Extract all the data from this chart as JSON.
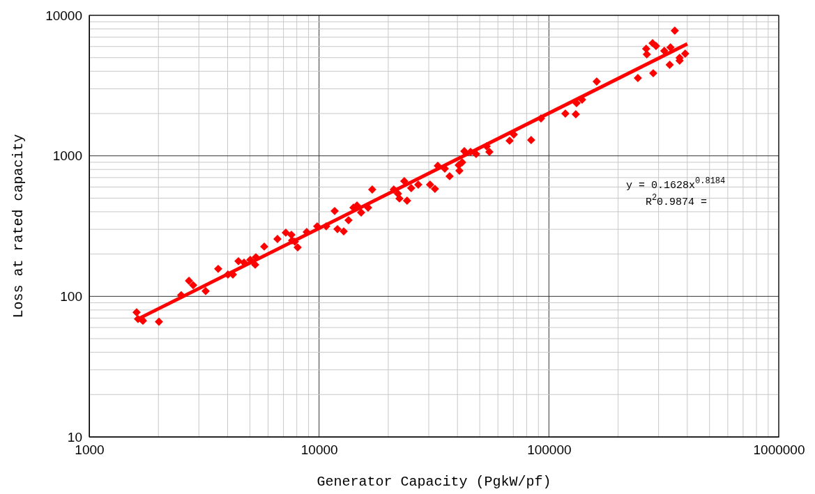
{
  "chart_data": {
    "type": "scatter",
    "xlabel": "Generator Capacity (PgkW/pf)",
    "ylabel": "Loss at rated capacity",
    "log": "xy",
    "grid": true,
    "xlim": [
      1000,
      1000000
    ],
    "xticks": [
      1000,
      10000,
      100000,
      1000000
    ],
    "ylim": [
      10,
      10000
    ],
    "yticks": [
      10,
      100,
      1000,
      10000
    ],
    "annotations": [
      "y = 0.1628x$^{0.8184}$",
      "R$^{2}$0.9874 ="
    ],
    "series": [
      {
        "marker": "diamond",
        "color": "#ff0000",
        "x": [
          1607,
          1630,
          1700,
          1712,
          2010,
          2512,
          2716,
          2833,
          3210,
          3640,
          4013,
          4217,
          4458,
          4714,
          5019,
          5272,
          5309,
          5772,
          6590,
          7164,
          7579,
          7632,
          7846,
          8071,
          8835,
          9813,
          10740,
          11690,
          12020,
          12800,
          13430,
          14110,
          14620,
          15240,
          16340,
          17030,
          21140,
          22040,
          22370,
          23480,
          24140,
          25170,
          27010,
          30400,
          31920,
          32850,
          35230,
          36980,
          40510,
          40790,
          41930,
          42850,
          45620,
          48220,
          53580,
          55080,
          67450,
          70330,
          83710,
          92360,
          117900,
          130900,
          131900,
          139400,
          161400,
          243800,
          265000,
          266700,
          282500,
          292400,
          284400,
          317700,
          338000,
          352900,
          335400,
          370400,
          370400,
          391700
        ],
        "values": [
          77,
          69,
          68,
          67,
          66,
          102,
          129,
          120,
          109,
          157,
          143,
          143,
          178,
          174,
          182,
          168,
          190,
          226,
          256,
          284,
          274,
          250,
          245,
          223,
          287,
          315,
          315,
          405,
          301,
          290,
          348,
          428,
          443,
          395,
          428,
          576,
          576,
          538,
          497,
          661,
          480,
          589,
          624,
          624,
          582,
          849,
          811,
          716,
          859,
          784,
          899,
          1079,
          1067,
          1030,
          1169,
          1067,
          1282,
          1420,
          1296,
          1845,
          2000,
          1977,
          2371,
          2512,
          3380,
          3580,
          5780,
          5280,
          6340,
          6054,
          3873,
          5585,
          5915,
          7780,
          4446,
          4989,
          4764,
          5338
        ]
      },
      {
        "type": "line",
        "color": "#ff0000",
        "x": [
          1600,
          400000
        ],
        "values": [
          68,
          6260
        ]
      }
    ]
  }
}
